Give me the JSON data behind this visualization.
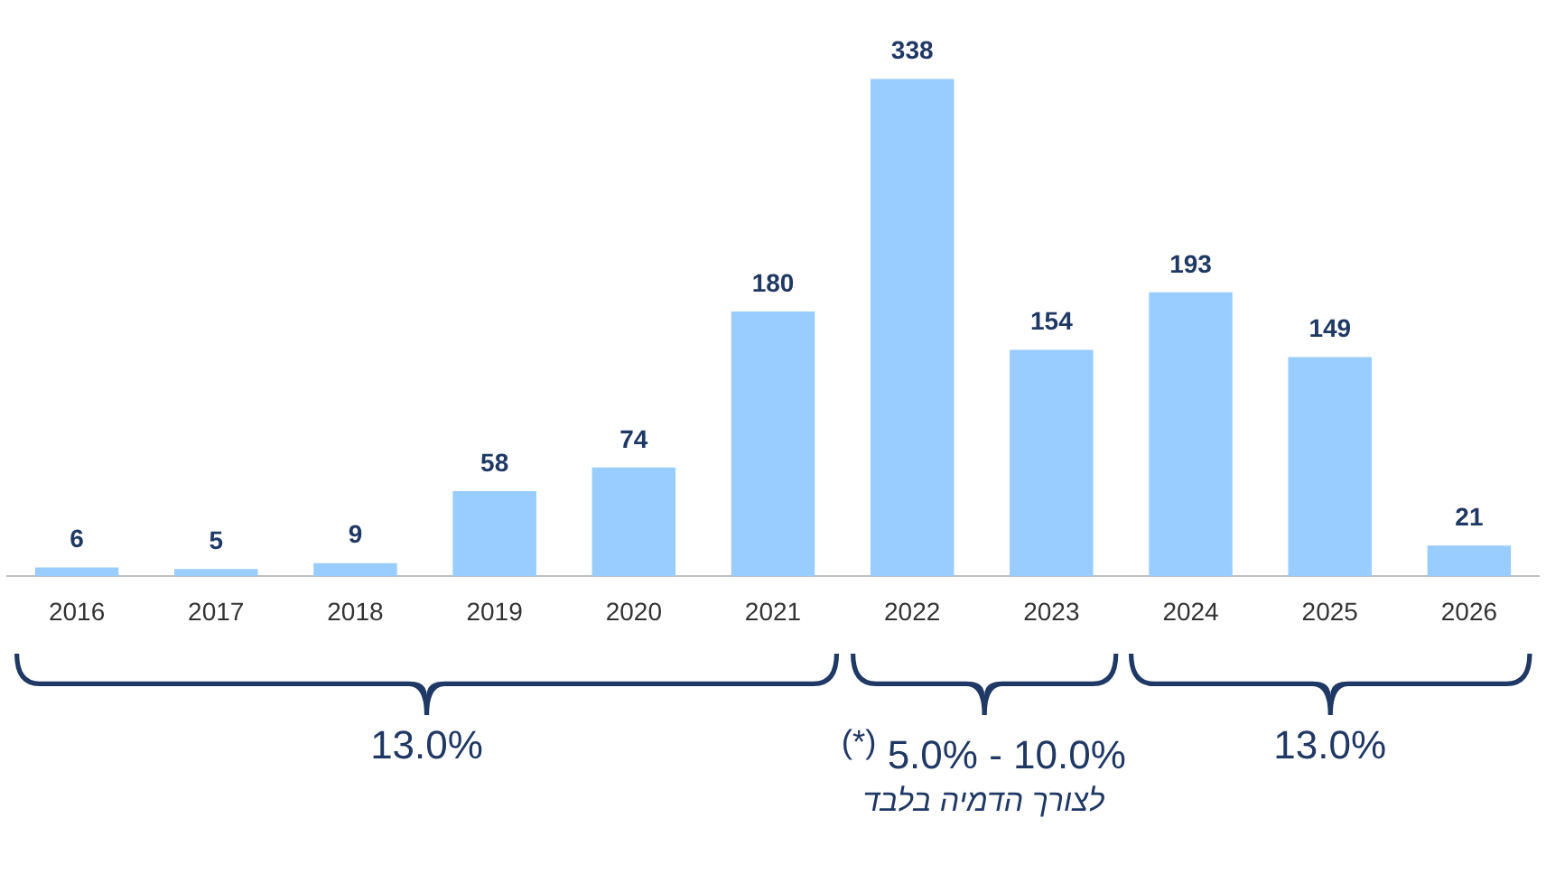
{
  "chart_data": {
    "type": "bar",
    "categories": [
      "2016",
      "2017",
      "2018",
      "2019",
      "2020",
      "2021",
      "2022",
      "2023",
      "2024",
      "2025",
      "2026"
    ],
    "values": [
      6,
      5,
      9,
      58,
      74,
      180,
      338,
      154,
      193,
      149,
      21
    ],
    "color": "#99ccff",
    "data_labels": true,
    "grid": false,
    "legend": false,
    "annotations": [
      "13.0%",
      "$^{(*)}$ 5.0% - 10.0%",
      "13.0%",
      "לצורך הדמיה בלבד"
    ]
  }
}
